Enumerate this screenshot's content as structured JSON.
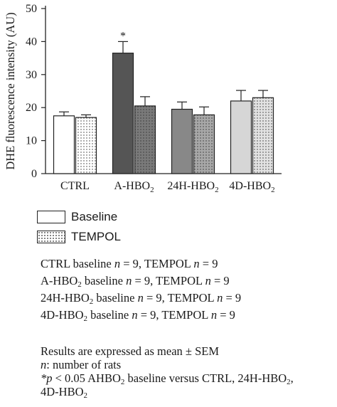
{
  "chart_data": {
    "type": "bar",
    "categories": [
      "CTRL",
      "A-HBO",
      "24H-HBO",
      "4D-HBO"
    ],
    "category_subscripts": [
      "",
      "2",
      "2",
      "2"
    ],
    "ylabel": "DHE fluorescence intensity (AU)",
    "ylim": [
      0,
      50
    ],
    "yticks": [
      0,
      10,
      20,
      30,
      40,
      50
    ],
    "grid": false,
    "significance_marker": "*",
    "significance_category": "A-HBO",
    "series": [
      {
        "name": "Baseline",
        "values": [
          17.5,
          36.5,
          19.5,
          22
        ],
        "errors": [
          1.2,
          3.5,
          2.2,
          3.2
        ],
        "fills": [
          "#ffffff",
          "#555555",
          "#888888",
          "#d6d6d6"
        ],
        "pattern": "solid"
      },
      {
        "name": "TEMPOL",
        "values": [
          17,
          20.5,
          17.8,
          23
        ],
        "errors": [
          0.8,
          2.8,
          2.4,
          2.2
        ],
        "fills": [
          "#ffffff",
          "#7a7a7a",
          "#a8a8a8",
          "#e2e2e2"
        ],
        "pattern": "dots"
      }
    ]
  },
  "legend": {
    "baseline": "Baseline",
    "tempol": "TEMPOL"
  },
  "notes": [
    {
      "pre": "CTRL baseline ",
      "n1": "n",
      "mid": " = 9, TEMPOL ",
      "n2": "n",
      "post": " = 9"
    },
    {
      "pre": "A-HBO",
      "sub": "2",
      "pre2": " baseline ",
      "n1": "n",
      "mid": " = 9, TEMPOL ",
      "n2": "n",
      "post": " = 9"
    },
    {
      "pre": "24H-HBO",
      "sub": "2",
      "pre2": " baseline ",
      "n1": "n",
      "mid": " = 9, TEMPOL ",
      "n2": "n",
      "post": " = 9"
    },
    {
      "pre": "4D-HBO",
      "sub": "2",
      "pre2": " baseline ",
      "n1": "n",
      "mid": " = 9, TEMPOL ",
      "n2": "n",
      "post": " = 9"
    }
  ],
  "footnotes": {
    "line1": "Results are expressed as mean ± SEM",
    "line2_italic": "n",
    "line2_rest": ": number of rats",
    "line3_star": "*",
    "line3_p": "p",
    "line3_a": " < 0.05 AHBO",
    "line3_sub1": "2",
    "line3_b": " baseline versus CTRL, 24H-HBO",
    "line3_sub2": "2",
    "line3_c": ",",
    "line4_a": "4D-HBO",
    "line4_sub": "2"
  }
}
